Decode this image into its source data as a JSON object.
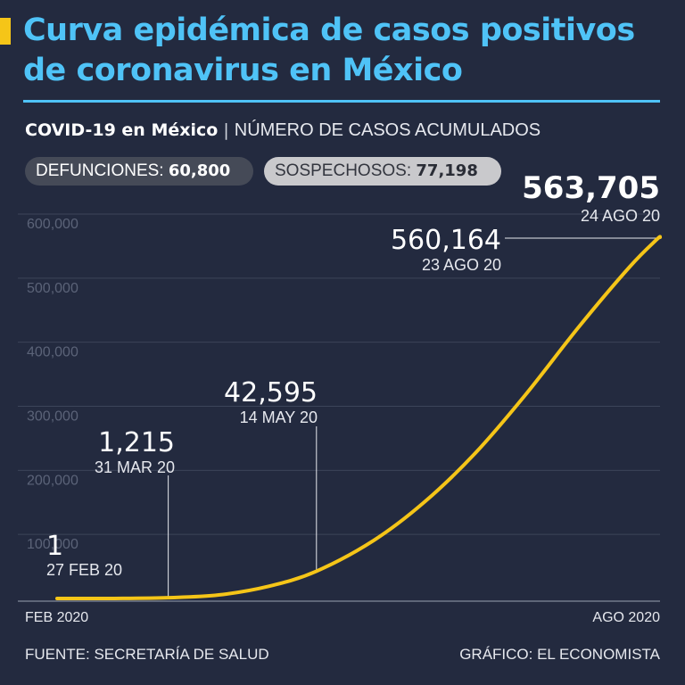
{
  "header": {
    "title": "Curva epidémica de casos positivos de coronavirus en México",
    "subtitle_bold": "COVID-19 en México",
    "subtitle_sep": "|",
    "subtitle_light": "NÚMERO DE CASOS ACUMULADOS"
  },
  "badges": {
    "deaths_label": "DEFUNCIONES:",
    "deaths_value": "60,800",
    "suspected_label": "SOSPECHOSOS:",
    "suspected_value": "77,198"
  },
  "footer": {
    "source": "FUENTE: SECRETARÍA DE SALUD",
    "credit": "GRÁFICO: EL ECONOMISTA"
  },
  "colors": {
    "background": "#232a3f",
    "title": "#4fc3f7",
    "line": "#f5c518",
    "grid": "#3c4459"
  },
  "chart_data": {
    "type": "line",
    "xlabel": "",
    "ylabel": "",
    "x_tick_labels": [
      "FEB 2020",
      "AGO 2020"
    ],
    "y_tick_labels": [
      "100,000",
      "200,000",
      "300,000",
      "400,000",
      "500,000",
      "600,000"
    ],
    "y_ticks": [
      100000,
      200000,
      300000,
      400000,
      500000,
      600000
    ],
    "ylim": [
      0,
      600000
    ],
    "xlim": [
      "2020-02-27",
      "2020-08-24"
    ],
    "grid": true,
    "series": [
      {
        "x": [
          "2020-02-27",
          "2020-03-15",
          "2020-03-31",
          "2020-04-15",
          "2020-04-30",
          "2020-05-14",
          "2020-05-31",
          "2020-06-15",
          "2020-06-30",
          "2020-07-15",
          "2020-07-31",
          "2020-08-15",
          "2020-08-23",
          "2020-08-24"
        ],
        "y": [
          1,
          60,
          1215,
          5500,
          19200,
          42595,
          90600,
          150300,
          226000,
          317600,
          424600,
          517700,
          560164,
          563705
        ]
      }
    ],
    "annotations": [
      {
        "x": "2020-02-27",
        "y": 1,
        "value": "1",
        "date": "27 FEB 20"
      },
      {
        "x": "2020-03-31",
        "y": 1215,
        "value": "1,215",
        "date": "31 MAR 20"
      },
      {
        "x": "2020-05-14",
        "y": 42595,
        "value": "42,595",
        "date": "14 MAY 20"
      },
      {
        "x": "2020-08-23",
        "y": 560164,
        "value": "560,164",
        "date": "23 AGO 20"
      },
      {
        "x": "2020-08-24",
        "y": 563705,
        "value": "563,705",
        "date": "24 AGO 20"
      }
    ]
  }
}
